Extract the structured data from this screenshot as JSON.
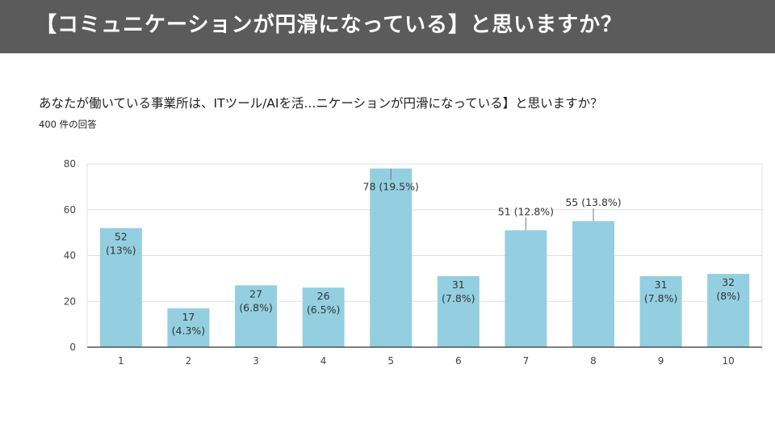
{
  "banner": {
    "title": "【コミュニケーションが円滑になっている】と思いますか？"
  },
  "survey": {
    "question": "あなたが働いている事業所は、ITツール/AIを活...ニケーションが円滑になっている】と思いますか？",
    "response_count": "400 件の回答"
  },
  "chart_data": {
    "type": "bar",
    "title": "あなたが働いている事業所は、ITツール/AIを活...ニケーションが円滑になっている】と思いますか？",
    "categories": [
      "1",
      "2",
      "3",
      "4",
      "5",
      "6",
      "7",
      "8",
      "9",
      "10"
    ],
    "values": [
      52,
      17,
      27,
      26,
      78,
      31,
      51,
      55,
      31,
      32
    ],
    "percent_labels": [
      "(13%)",
      "(4.3%)",
      "(6.8%)",
      "(6.5%)",
      "(19.5%)",
      "(7.8%)",
      "(12.8%)",
      "(13.8%)",
      "(7.8%)",
      "(8%)"
    ],
    "yticks": [
      0,
      20,
      40,
      60,
      80
    ],
    "ylim": [
      0,
      80
    ],
    "xlabel": "",
    "ylabel": "",
    "grid": true,
    "bar_color": "#93cfe0"
  }
}
